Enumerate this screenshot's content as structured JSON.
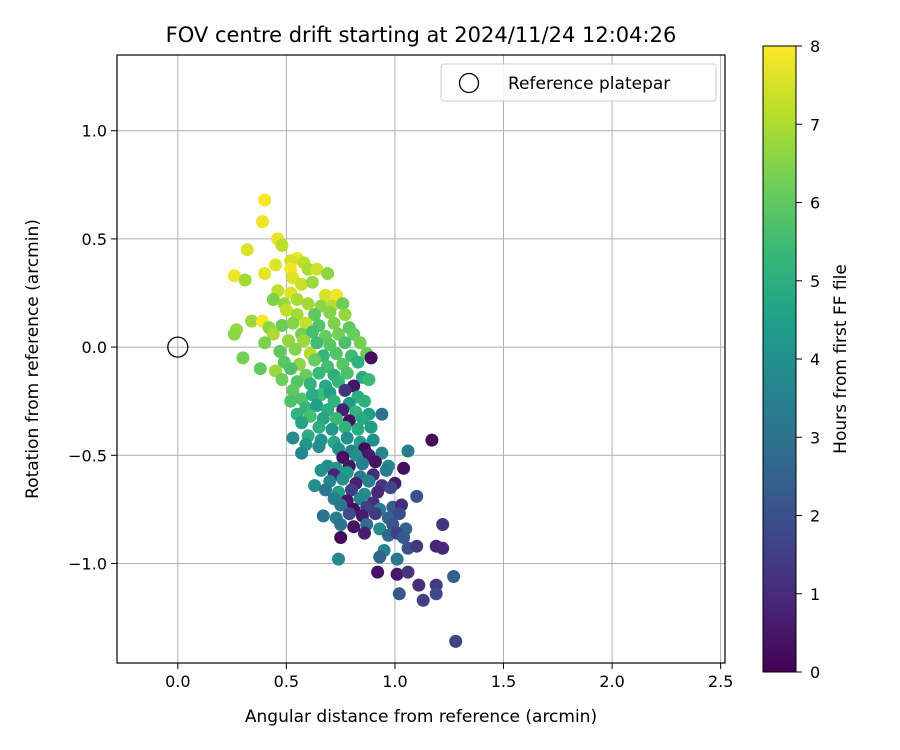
{
  "chart_data": {
    "type": "scatter",
    "title": "FOV centre drift starting at 2024/11/24 12:04:26",
    "xlabel": "Angular distance from reference (arcmin)",
    "ylabel": "Rotation from reference (arcmin)",
    "xlim": [
      -0.28,
      2.52
    ],
    "ylim": [
      -1.46,
      1.35
    ],
    "xticks": [
      0.0,
      0.5,
      1.0,
      1.5,
      2.0,
      2.5
    ],
    "xtick_labels": [
      "0.0",
      "0.5",
      "1.0",
      "1.5",
      "2.0",
      "2.5"
    ],
    "yticks": [
      -1.0,
      -0.5,
      0.0,
      0.5,
      1.0
    ],
    "ytick_labels": [
      "−1.0",
      "−0.5",
      "0.0",
      "0.5",
      "1.0"
    ],
    "grid": true,
    "legend": {
      "placement": "upper right",
      "entries": [
        "Reference platepar"
      ]
    },
    "reference_point": {
      "x": 0.0,
      "y": 0.0,
      "marker": "open-circle"
    },
    "colorbar": {
      "label": "Hours from first FF file",
      "range": [
        0,
        8
      ],
      "ticks": [
        0,
        1,
        2,
        3,
        4,
        5,
        6,
        7,
        8
      ],
      "tick_labels": [
        "0",
        "1",
        "2",
        "3",
        "4",
        "5",
        "6",
        "7",
        "8"
      ],
      "colormap": "viridis"
    },
    "colormap_stops": [
      "#440154",
      "#482878",
      "#3e4989",
      "#31688e",
      "#26828e",
      "#1f9e89",
      "#35b779",
      "#6ece58",
      "#b5de2b",
      "#fde725"
    ],
    "series": [
      {
        "points": [
          [
            0.4,
            0.68,
            7.9
          ],
          [
            0.39,
            0.58,
            7.8
          ],
          [
            0.46,
            0.5,
            7.7
          ],
          [
            0.32,
            0.45,
            7.6
          ],
          [
            0.48,
            0.47,
            7.2
          ],
          [
            0.55,
            0.41,
            7.8
          ],
          [
            0.52,
            0.4,
            7.5
          ],
          [
            0.58,
            0.39,
            7.2
          ],
          [
            0.45,
            0.38,
            7.6
          ],
          [
            0.52,
            0.36,
            7.9
          ],
          [
            0.4,
            0.34,
            7.7
          ],
          [
            0.6,
            0.36,
            7.0
          ],
          [
            0.64,
            0.36,
            7.4
          ],
          [
            0.26,
            0.33,
            7.8
          ],
          [
            0.69,
            0.34,
            6.6
          ],
          [
            0.31,
            0.31,
            6.9
          ],
          [
            0.53,
            0.32,
            7.6
          ],
          [
            0.57,
            0.29,
            7.3
          ],
          [
            0.62,
            0.3,
            6.8
          ],
          [
            0.46,
            0.26,
            7.2
          ],
          [
            0.52,
            0.25,
            7.6
          ],
          [
            0.68,
            0.24,
            7.5
          ],
          [
            0.73,
            0.24,
            7.8
          ],
          [
            0.44,
            0.22,
            6.4
          ],
          [
            0.49,
            0.2,
            6.8
          ],
          [
            0.55,
            0.22,
            7.0
          ],
          [
            0.6,
            0.2,
            6.9
          ],
          [
            0.66,
            0.19,
            6.6
          ],
          [
            0.71,
            0.19,
            7.1
          ],
          [
            0.76,
            0.2,
            6.2
          ],
          [
            0.5,
            0.17,
            7.3
          ],
          [
            0.55,
            0.15,
            6.9
          ],
          [
            0.63,
            0.15,
            6.0
          ],
          [
            0.7,
            0.16,
            6.5
          ],
          [
            0.77,
            0.15,
            6.7
          ],
          [
            0.34,
            0.12,
            6.8
          ],
          [
            0.39,
            0.12,
            7.9
          ],
          [
            0.42,
            0.09,
            6.6
          ],
          [
            0.48,
            0.1,
            6.2
          ],
          [
            0.53,
            0.11,
            6.5
          ],
          [
            0.59,
            0.11,
            7.3
          ],
          [
            0.65,
            0.1,
            5.8
          ],
          [
            0.72,
            0.11,
            6.4
          ],
          [
            0.79,
            0.09,
            6.0
          ],
          [
            0.27,
            0.08,
            6.7
          ],
          [
            0.26,
            0.06,
            6.6
          ],
          [
            0.44,
            0.06,
            7.0
          ],
          [
            0.57,
            0.06,
            6.3
          ],
          [
            0.62,
            0.07,
            5.6
          ],
          [
            0.68,
            0.05,
            6.1
          ],
          [
            0.74,
            0.06,
            6.3
          ],
          [
            0.81,
            0.06,
            6.1
          ],
          [
            0.4,
            0.02,
            6.4
          ],
          [
            0.51,
            0.03,
            6.7
          ],
          [
            0.58,
            0.03,
            6.8
          ],
          [
            0.64,
            0.02,
            5.5
          ],
          [
            0.7,
            0.01,
            5.9
          ],
          [
            0.77,
            0.02,
            5.7
          ],
          [
            0.84,
            0.02,
            6.3
          ],
          [
            0.47,
            -0.02,
            6.0
          ],
          [
            0.54,
            -0.01,
            6.5
          ],
          [
            0.61,
            -0.03,
            7.1
          ],
          [
            0.67,
            -0.04,
            5.3
          ],
          [
            0.73,
            -0.03,
            5.8
          ],
          [
            0.8,
            -0.04,
            5.5
          ],
          [
            0.87,
            -0.03,
            6.1
          ],
          [
            0.3,
            -0.05,
            6.3
          ],
          [
            0.49,
            -0.07,
            5.9
          ],
          [
            0.56,
            -0.08,
            6.6
          ],
          [
            0.63,
            -0.06,
            6.1
          ],
          [
            0.69,
            -0.09,
            5.6
          ],
          [
            0.76,
            -0.08,
            5.9
          ],
          [
            0.83,
            -0.07,
            5.1
          ],
          [
            0.89,
            -0.05,
            0.3
          ],
          [
            0.38,
            -0.1,
            6.0
          ],
          [
            0.45,
            -0.11,
            6.8
          ],
          [
            0.52,
            -0.1,
            5.7
          ],
          [
            0.59,
            -0.13,
            6.2
          ],
          [
            0.65,
            -0.12,
            5.4
          ],
          [
            0.72,
            -0.13,
            5.0
          ],
          [
            0.78,
            -0.12,
            5.7
          ],
          [
            0.85,
            -0.14,
            4.9
          ],
          [
            0.48,
            -0.15,
            6.2
          ],
          [
            0.55,
            -0.16,
            5.8
          ],
          [
            0.61,
            -0.17,
            5.2
          ],
          [
            0.68,
            -0.18,
            4.8
          ],
          [
            0.74,
            -0.16,
            5.3
          ],
          [
            0.81,
            -0.18,
            0.5
          ],
          [
            0.88,
            -0.15,
            5.4
          ],
          [
            0.53,
            -0.2,
            6.0
          ],
          [
            0.66,
            -0.22,
            5.5
          ],
          [
            0.7,
            -0.21,
            4.6
          ],
          [
            0.77,
            -0.2,
            1.2
          ],
          [
            0.83,
            -0.23,
            5.0
          ],
          [
            0.57,
            -0.24,
            5.8
          ],
          [
            0.62,
            -0.22,
            4.9
          ],
          [
            0.72,
            -0.25,
            5.2
          ],
          [
            0.79,
            -0.26,
            4.4
          ],
          [
            0.86,
            -0.25,
            5.1
          ],
          [
            0.52,
            -0.25,
            5.7
          ],
          [
            0.59,
            -0.28,
            5.3
          ],
          [
            0.64,
            -0.27,
            4.5
          ],
          [
            0.69,
            -0.29,
            5.0
          ],
          [
            0.76,
            -0.29,
            0.7
          ],
          [
            0.82,
            -0.3,
            5.3
          ],
          [
            0.88,
            -0.31,
            4.5
          ],
          [
            0.55,
            -0.31,
            5.2
          ],
          [
            0.61,
            -0.32,
            5.6
          ],
          [
            0.67,
            -0.33,
            4.7
          ],
          [
            0.73,
            -0.33,
            5.4
          ],
          [
            0.79,
            -0.34,
            0.4
          ],
          [
            0.85,
            -0.33,
            4.8
          ],
          [
            0.94,
            -0.31,
            3.0
          ],
          [
            0.57,
            -0.35,
            4.6
          ],
          [
            0.65,
            -0.37,
            5.0
          ],
          [
            0.71,
            -0.38,
            4.3
          ],
          [
            0.77,
            -0.37,
            5.2
          ],
          [
            0.83,
            -0.38,
            4.9
          ],
          [
            0.89,
            -0.37,
            4.4
          ],
          [
            0.53,
            -0.42,
            3.8
          ],
          [
            0.6,
            -0.41,
            4.9
          ],
          [
            0.66,
            -0.43,
            4.2
          ],
          [
            0.72,
            -0.44,
            4.7
          ],
          [
            0.78,
            -0.42,
            4.0
          ],
          [
            0.84,
            -0.44,
            4.5
          ],
          [
            0.9,
            -0.43,
            4.0
          ],
          [
            0.59,
            -0.45,
            4.2
          ],
          [
            0.65,
            -0.46,
            3.9
          ],
          [
            0.74,
            -0.47,
            4.1
          ],
          [
            0.8,
            -0.48,
            3.6
          ],
          [
            0.86,
            -0.47,
            0.2
          ],
          [
            0.57,
            -0.49,
            3.7
          ],
          [
            0.76,
            -0.51,
            0.3
          ],
          [
            0.82,
            -0.5,
            4.0
          ],
          [
            0.88,
            -0.5,
            0.6
          ],
          [
            0.94,
            -0.49,
            3.7
          ],
          [
            1.06,
            -0.48,
            3.3
          ],
          [
            1.17,
            -0.43,
            0.2
          ],
          [
            0.69,
            -0.55,
            3.9
          ],
          [
            0.73,
            -0.56,
            4.3
          ],
          [
            0.79,
            -0.55,
            0.5
          ],
          [
            0.85,
            -0.54,
            3.5
          ],
          [
            0.91,
            -0.53,
            0.4
          ],
          [
            0.97,
            -0.55,
            3.8
          ],
          [
            1.04,
            -0.56,
            0.3
          ],
          [
            0.66,
            -0.57,
            4.1
          ],
          [
            0.72,
            -0.59,
            0.8
          ],
          [
            0.78,
            -0.58,
            4.4
          ],
          [
            0.84,
            -0.6,
            3.2
          ],
          [
            0.9,
            -0.59,
            1.0
          ],
          [
            0.96,
            -0.57,
            3.4
          ],
          [
            0.7,
            -0.62,
            3.6
          ],
          [
            0.76,
            -0.61,
            4.0
          ],
          [
            0.82,
            -0.63,
            0.7
          ],
          [
            0.88,
            -0.62,
            3.6
          ],
          [
            0.94,
            -0.64,
            1.3
          ],
          [
            1.0,
            -0.63,
            0.6
          ],
          [
            0.63,
            -0.64,
            4.0
          ],
          [
            0.68,
            -0.66,
            3.1
          ],
          [
            0.74,
            -0.67,
            4.5
          ],
          [
            0.8,
            -0.66,
            1.5
          ],
          [
            0.86,
            -0.68,
            3.9
          ],
          [
            0.92,
            -0.67,
            0.9
          ],
          [
            0.98,
            -0.65,
            1.7
          ],
          [
            0.72,
            -0.7,
            3.4
          ],
          [
            0.78,
            -0.71,
            0.5
          ],
          [
            0.84,
            -0.7,
            3.7
          ],
          [
            0.9,
            -0.72,
            1.1
          ],
          [
            1.1,
            -0.69,
            2.0
          ],
          [
            0.75,
            -0.73,
            3.2
          ],
          [
            0.81,
            -0.75,
            0.3
          ],
          [
            0.87,
            -0.74,
            1.6
          ],
          [
            0.93,
            -0.75,
            3.5
          ],
          [
            0.99,
            -0.74,
            2.3
          ],
          [
            1.03,
            -0.73,
            1.0
          ],
          [
            0.67,
            -0.78,
            3.0
          ],
          [
            0.73,
            -0.79,
            3.4
          ],
          [
            0.79,
            -0.77,
            1.8
          ],
          [
            0.85,
            -0.78,
            0.6
          ],
          [
            0.91,
            -0.77,
            1.4
          ],
          [
            0.97,
            -0.79,
            2.6
          ],
          [
            1.02,
            -0.77,
            1.9
          ],
          [
            0.75,
            -0.82,
            3.1
          ],
          [
            0.81,
            -0.83,
            0.4
          ],
          [
            0.87,
            -0.82,
            2.8
          ],
          [
            0.93,
            -0.84,
            3.9
          ],
          [
            0.99,
            -0.82,
            2.1
          ],
          [
            1.05,
            -0.84,
            2.5
          ],
          [
            1.22,
            -0.82,
            1.2
          ],
          [
            0.75,
            -0.88,
            0.2
          ],
          [
            0.86,
            -0.86,
            0.7
          ],
          [
            0.97,
            -0.87,
            2.7
          ],
          [
            1.01,
            -0.86,
            1.6
          ],
          [
            1.04,
            -0.88,
            2.2
          ],
          [
            1.19,
            -0.92,
            0.8
          ],
          [
            1.06,
            -0.93,
            2.0
          ],
          [
            1.1,
            -0.92,
            1.3
          ],
          [
            0.95,
            -0.94,
            3.6
          ],
          [
            1.22,
            -0.93,
            0.9
          ],
          [
            0.74,
            -0.98,
            3.8
          ],
          [
            0.93,
            -0.97,
            2.5
          ],
          [
            1.01,
            -0.98,
            3.2
          ],
          [
            0.92,
            -1.04,
            0.4
          ],
          [
            1.01,
            -1.05,
            0.5
          ],
          [
            1.06,
            -1.04,
            1.2
          ],
          [
            1.19,
            -1.1,
            1.4
          ],
          [
            1.27,
            -1.06,
            2.4
          ],
          [
            1.11,
            -1.1,
            1.1
          ],
          [
            1.02,
            -1.14,
            2.2
          ],
          [
            1.13,
            -1.17,
            1.6
          ],
          [
            1.19,
            -1.14,
            1.8
          ],
          [
            1.28,
            -1.36,
            1.7
          ]
        ]
      }
    ]
  }
}
